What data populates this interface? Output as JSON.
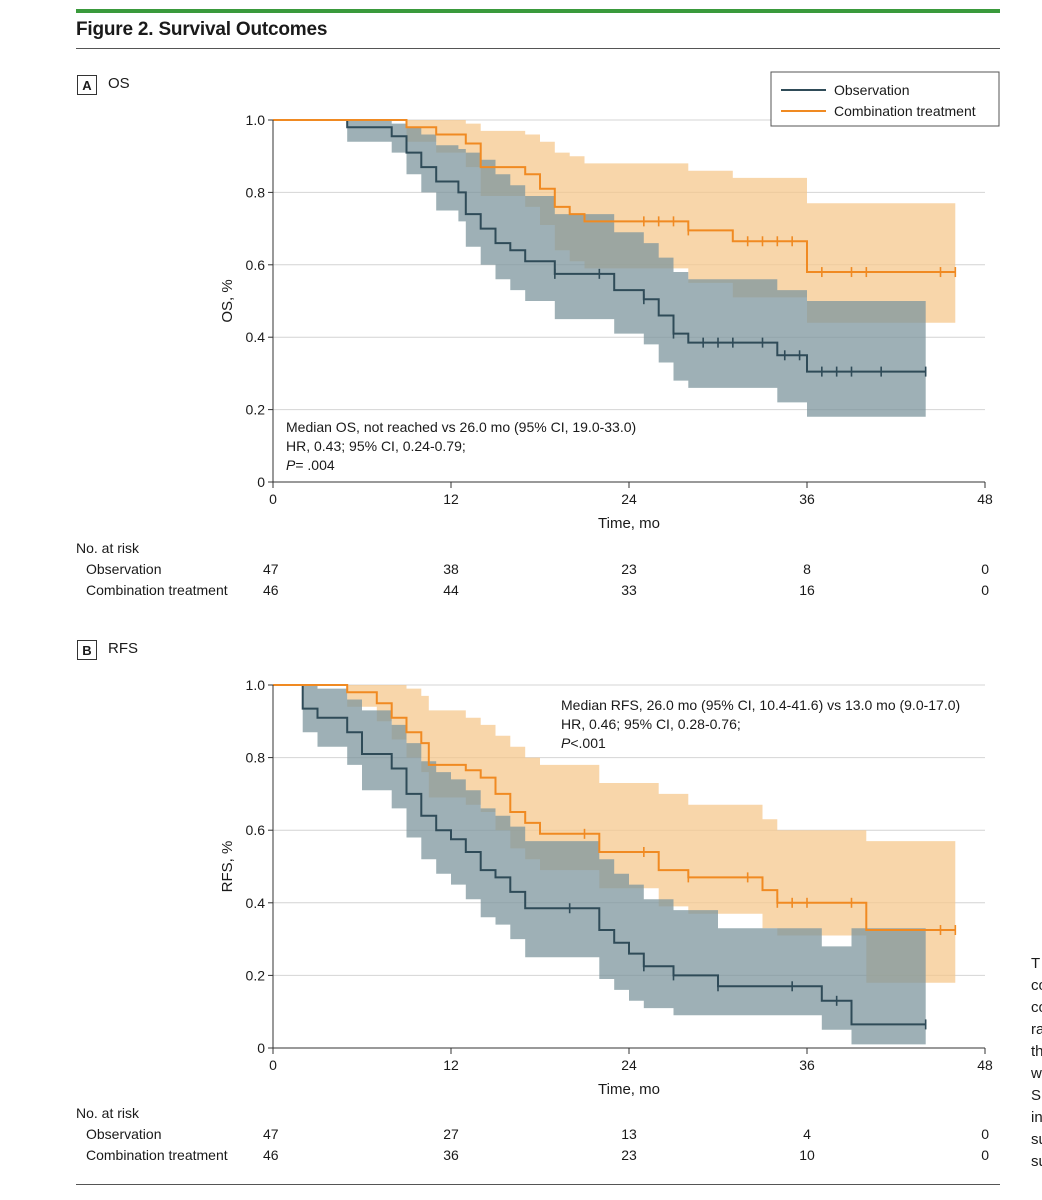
{
  "figure": {
    "title": "Figure 2. Survival Outcomes",
    "accent_color": "#3a9a3c"
  },
  "legend": {
    "series": [
      "Observation",
      "Combination treatment"
    ]
  },
  "colors": {
    "observation": "#2f4b58",
    "combination": "#f08a22",
    "observation_ci": "#7d959d",
    "combination_ci": "#f6c88e"
  },
  "side_text": [
    "T",
    "co",
    "co",
    "ra",
    "th",
    "w",
    "SI",
    "in",
    "su",
    "su"
  ],
  "chart_data": [
    {
      "type": "line",
      "panel_label": "A",
      "panel_name": "OS",
      "title": "OS",
      "xlabel": "Time, mo",
      "ylabel": "OS, %",
      "xlim": [
        0,
        48
      ],
      "ylim": [
        0,
        1.0
      ],
      "xticks": [
        "0",
        "12",
        "24",
        "36",
        "48"
      ],
      "yticks": [
        "0",
        "0.2",
        "0.4",
        "0.6",
        "0.8",
        "1.0"
      ],
      "grid": true,
      "annotation": [
        "Median OS, not reached vs 26.0 mo (95% CI, 19.0-33.0)",
        "HR, 0.43; 95% CI, 0.24-0.79;",
        "P",
        "= .004"
      ],
      "annotation_position": "bottom-left",
      "legend_position": "top-right",
      "series": [
        {
          "name": "Observation",
          "steps": [
            [
              0,
              1.0
            ],
            [
              5,
              0.98
            ],
            [
              8,
              0.955
            ],
            [
              9,
              0.91
            ],
            [
              10,
              0.87
            ],
            [
              11,
              0.83
            ],
            [
              12.5,
              0.8
            ],
            [
              13,
              0.74
            ],
            [
              14,
              0.7
            ],
            [
              15,
              0.66
            ],
            [
              16,
              0.64
            ],
            [
              17,
              0.61
            ],
            [
              19,
              0.575
            ],
            [
              23,
              0.53
            ],
            [
              25,
              0.505
            ],
            [
              26,
              0.46
            ],
            [
              27,
              0.41
            ],
            [
              28,
              0.385
            ],
            [
              34,
              0.35
            ],
            [
              36,
              0.305
            ],
            [
              44,
              0.305
            ]
          ],
          "censor_times": [
            19,
            22,
            25,
            27,
            29,
            30,
            31,
            33,
            34.5,
            35.5,
            37,
            38,
            39,
            41,
            44
          ],
          "ci": [
            [
              0,
              1.0,
              1.0
            ],
            [
              5,
              1.0,
              0.94
            ],
            [
              8,
              0.99,
              0.91
            ],
            [
              9,
              0.98,
              0.85
            ],
            [
              10,
              0.96,
              0.8
            ],
            [
              11,
              0.93,
              0.75
            ],
            [
              12.5,
              0.92,
              0.72
            ],
            [
              13,
              0.91,
              0.65
            ],
            [
              14,
              0.89,
              0.6
            ],
            [
              15,
              0.85,
              0.56
            ],
            [
              16,
              0.82,
              0.53
            ],
            [
              17,
              0.79,
              0.5
            ],
            [
              19,
              0.74,
              0.45
            ],
            [
              23,
              0.69,
              0.41
            ],
            [
              25,
              0.66,
              0.38
            ],
            [
              26,
              0.62,
              0.33
            ],
            [
              27,
              0.58,
              0.28
            ],
            [
              28,
              0.56,
              0.26
            ],
            [
              34,
              0.53,
              0.22
            ],
            [
              36,
              0.5,
              0.18
            ],
            [
              44,
              0.5,
              0.18
            ]
          ]
        },
        {
          "name": "Combination treatment",
          "steps": [
            [
              0,
              1.0
            ],
            [
              9,
              0.98
            ],
            [
              11,
              0.96
            ],
            [
              13,
              0.935
            ],
            [
              14,
              0.87
            ],
            [
              17,
              0.85
            ],
            [
              18,
              0.81
            ],
            [
              19,
              0.76
            ],
            [
              20,
              0.74
            ],
            [
              21,
              0.72
            ],
            [
              28,
              0.695
            ],
            [
              31,
              0.665
            ],
            [
              36,
              0.58
            ],
            [
              46,
              0.58
            ]
          ],
          "censor_times": [
            25,
            26,
            27,
            28,
            32,
            33,
            34,
            35,
            37,
            39,
            40,
            45,
            46
          ],
          "ci": [
            [
              0,
              1.0,
              1.0
            ],
            [
              9,
              1.0,
              0.94
            ],
            [
              11,
              1.0,
              0.91
            ],
            [
              13,
              0.99,
              0.87
            ],
            [
              14,
              0.97,
              0.79
            ],
            [
              17,
              0.96,
              0.76
            ],
            [
              18,
              0.94,
              0.71
            ],
            [
              19,
              0.91,
              0.64
            ],
            [
              20,
              0.9,
              0.61
            ],
            [
              21,
              0.88,
              0.59
            ],
            [
              28,
              0.86,
              0.55
            ],
            [
              31,
              0.84,
              0.51
            ],
            [
              36,
              0.77,
              0.44
            ],
            [
              46,
              0.77,
              0.44
            ]
          ]
        }
      ],
      "at_risk": {
        "title": "No. at risk",
        "times": [
          0,
          12,
          24,
          36,
          48
        ],
        "rows": [
          {
            "label": "Observation",
            "values": [
              "47",
              "38",
              "23",
              "8",
              "0"
            ]
          },
          {
            "label": "Combination treatment",
            "values": [
              "46",
              "44",
              "33",
              "16",
              "0"
            ]
          }
        ]
      }
    },
    {
      "type": "line",
      "panel_label": "B",
      "panel_name": "RFS",
      "title": "RFS",
      "xlabel": "Time, mo",
      "ylabel": "RFS, %",
      "xlim": [
        0,
        48
      ],
      "ylim": [
        0,
        1.0
      ],
      "xticks": [
        "0",
        "12",
        "24",
        "36",
        "48"
      ],
      "yticks": [
        "0",
        "0.2",
        "0.4",
        "0.6",
        "0.8",
        "1.0"
      ],
      "grid": true,
      "annotation": [
        "Median RFS, 26.0 mo (95% CI, 10.4-41.6) vs 13.0 mo (9.0-17.0)",
        "HR, 0.46; 95% CI, 0.28-0.76;",
        "P",
        "<.001"
      ],
      "annotation_position": "top-right",
      "series": [
        {
          "name": "Observation",
          "steps": [
            [
              0,
              1.0
            ],
            [
              2,
              0.935
            ],
            [
              3,
              0.91
            ],
            [
              5,
              0.87
            ],
            [
              6,
              0.81
            ],
            [
              8,
              0.77
            ],
            [
              9,
              0.7
            ],
            [
              10,
              0.64
            ],
            [
              11,
              0.6
            ],
            [
              12,
              0.575
            ],
            [
              13,
              0.54
            ],
            [
              14,
              0.49
            ],
            [
              15,
              0.47
            ],
            [
              16,
              0.43
            ],
            [
              17,
              0.385
            ],
            [
              22,
              0.325
            ],
            [
              23,
              0.29
            ],
            [
              24,
              0.26
            ],
            [
              25,
              0.225
            ],
            [
              27,
              0.2
            ],
            [
              30,
              0.17
            ],
            [
              37,
              0.13
            ],
            [
              39,
              0.065
            ],
            [
              44,
              0.065
            ]
          ],
          "censor_times": [
            20,
            25,
            27,
            30,
            35,
            38,
            44
          ],
          "ci": [
            [
              0,
              1.0,
              1.0
            ],
            [
              2,
              1.0,
              0.87
            ],
            [
              3,
              0.99,
              0.83
            ],
            [
              5,
              0.96,
              0.78
            ],
            [
              6,
              0.93,
              0.71
            ],
            [
              8,
              0.89,
              0.66
            ],
            [
              9,
              0.84,
              0.58
            ],
            [
              10,
              0.79,
              0.52
            ],
            [
              11,
              0.76,
              0.48
            ],
            [
              12,
              0.74,
              0.45
            ],
            [
              13,
              0.71,
              0.41
            ],
            [
              14,
              0.66,
              0.36
            ],
            [
              15,
              0.64,
              0.34
            ],
            [
              16,
              0.61,
              0.3
            ],
            [
              17,
              0.57,
              0.25
            ],
            [
              22,
              0.52,
              0.19
            ],
            [
              23,
              0.48,
              0.16
            ],
            [
              24,
              0.45,
              0.13
            ],
            [
              25,
              0.41,
              0.11
            ],
            [
              27,
              0.38,
              0.09
            ],
            [
              30,
              0.33,
              0.09
            ],
            [
              37,
              0.28,
              0.05
            ],
            [
              39,
              0.33,
              0.01
            ],
            [
              44,
              0.33,
              0.01
            ]
          ]
        },
        {
          "name": "Combination treatment",
          "steps": [
            [
              0,
              1.0
            ],
            [
              5,
              0.98
            ],
            [
              7,
              0.95
            ],
            [
              8,
              0.91
            ],
            [
              9,
              0.87
            ],
            [
              10,
              0.84
            ],
            [
              10.5,
              0.78
            ],
            [
              13,
              0.765
            ],
            [
              14,
              0.745
            ],
            [
              15,
              0.7
            ],
            [
              16,
              0.65
            ],
            [
              17,
              0.62
            ],
            [
              18,
              0.59
            ],
            [
              22,
              0.54
            ],
            [
              26,
              0.49
            ],
            [
              28,
              0.47
            ],
            [
              33,
              0.435
            ],
            [
              34,
              0.4
            ],
            [
              40,
              0.325
            ],
            [
              46,
              0.325
            ]
          ],
          "censor_times": [
            21,
            25,
            28,
            32,
            34,
            35,
            36,
            39,
            45,
            46
          ],
          "ci": [
            [
              0,
              1.0,
              1.0
            ],
            [
              5,
              1.0,
              0.94
            ],
            [
              7,
              1.0,
              0.9
            ],
            [
              8,
              1.0,
              0.85
            ],
            [
              9,
              0.99,
              0.8
            ],
            [
              10,
              0.97,
              0.76
            ],
            [
              10.5,
              0.93,
              0.69
            ],
            [
              13,
              0.91,
              0.67
            ],
            [
              14,
              0.89,
              0.65
            ],
            [
              15,
              0.86,
              0.6
            ],
            [
              16,
              0.83,
              0.55
            ],
            [
              17,
              0.8,
              0.52
            ],
            [
              18,
              0.78,
              0.49
            ],
            [
              22,
              0.73,
              0.44
            ],
            [
              26,
              0.7,
              0.39
            ],
            [
              28,
              0.67,
              0.37
            ],
            [
              33,
              0.63,
              0.33
            ],
            [
              34,
              0.6,
              0.31
            ],
            [
              40,
              0.57,
              0.18
            ],
            [
              46,
              0.57,
              0.18
            ]
          ]
        }
      ],
      "at_risk": {
        "title": "No. at risk",
        "times": [
          0,
          12,
          24,
          36,
          48
        ],
        "rows": [
          {
            "label": "Observation",
            "values": [
              "47",
              "27",
              "13",
              "4",
              "0"
            ]
          },
          {
            "label": "Combination treatment",
            "values": [
              "46",
              "36",
              "23",
              "10",
              "0"
            ]
          }
        ]
      }
    }
  ]
}
